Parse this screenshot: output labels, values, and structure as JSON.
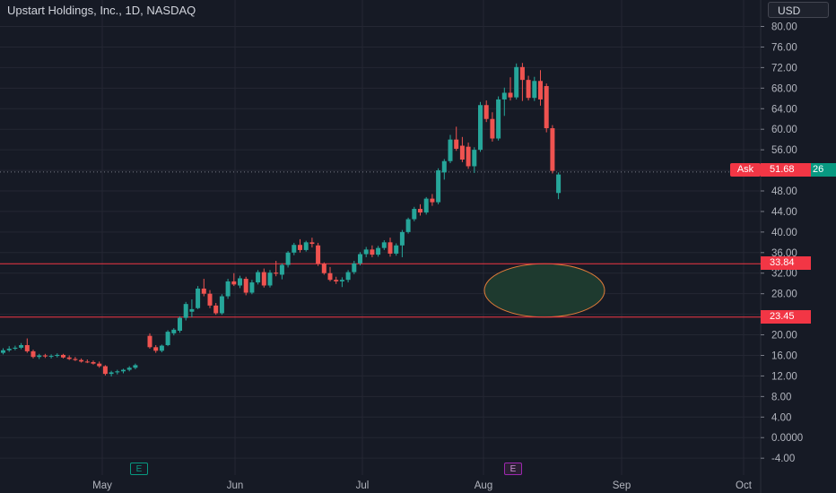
{
  "header": {
    "title": "Upstart Holdings, Inc., 1D, NASDAQ",
    "currency_label": "USD"
  },
  "price_labels": {
    "ask_label": "Ask",
    "ask_price": "51.68",
    "bid_stub": "26",
    "level_upper": "33.84",
    "level_lower": "23.45"
  },
  "earnings_badges": [
    "E",
    "E"
  ],
  "colors": {
    "background": "#161a25",
    "up": "#26a69a",
    "down": "#ef5350",
    "level_line": "#f23645",
    "ellipse_fill": "#1e3a2f",
    "ellipse_stroke": "#e07b39",
    "grid": "#242733",
    "text": "#d1d4dc"
  },
  "chart_data": {
    "type": "candlestick",
    "title": "Upstart Holdings, Inc., 1D, NASDAQ",
    "y_ticks": [
      "80.00",
      "76.00",
      "72.00",
      "68.00",
      "64.00",
      "60.00",
      "56.00",
      "52.00",
      "48.00",
      "44.00",
      "40.00",
      "36.00",
      "32.00",
      "28.00",
      "24.00",
      "20.00",
      "16.00",
      "12.00",
      "8.00",
      "4.00",
      "0.0000",
      "-4.00"
    ],
    "x_ticks": [
      "May",
      "Jun",
      "Jul",
      "Aug",
      "Sep",
      "Oct"
    ],
    "ylim": [
      -5,
      82
    ],
    "horizontal_levels": [
      33.84,
      23.45
    ],
    "current_price": 51.68,
    "highlight_zone": {
      "shape": "ellipse",
      "price_range": [
        23.45,
        33.84
      ]
    },
    "candles": [
      {
        "o": 16.5,
        "h": 17.4,
        "l": 16.2,
        "c": 17.0
      },
      {
        "o": 17.0,
        "h": 17.8,
        "l": 16.7,
        "c": 17.3
      },
      {
        "o": 17.3,
        "h": 17.9,
        "l": 17.0,
        "c": 17.5
      },
      {
        "o": 17.5,
        "h": 18.4,
        "l": 17.2,
        "c": 18.0
      },
      {
        "o": 18.0,
        "h": 19.3,
        "l": 16.5,
        "c": 16.8
      },
      {
        "o": 16.8,
        "h": 17.1,
        "l": 15.4,
        "c": 15.7
      },
      {
        "o": 15.7,
        "h": 16.3,
        "l": 15.3,
        "c": 16.0
      },
      {
        "o": 16.0,
        "h": 16.3,
        "l": 15.5,
        "c": 15.8
      },
      {
        "o": 15.8,
        "h": 16.2,
        "l": 15.4,
        "c": 15.9
      },
      {
        "o": 15.9,
        "h": 16.4,
        "l": 15.6,
        "c": 16.1
      },
      {
        "o": 16.1,
        "h": 16.3,
        "l": 15.4,
        "c": 15.6
      },
      {
        "o": 15.6,
        "h": 16.0,
        "l": 15.1,
        "c": 15.3
      },
      {
        "o": 15.3,
        "h": 15.7,
        "l": 14.9,
        "c": 15.1
      },
      {
        "o": 15.1,
        "h": 15.4,
        "l": 14.6,
        "c": 14.8
      },
      {
        "o": 14.8,
        "h": 15.2,
        "l": 14.5,
        "c": 14.7
      },
      {
        "o": 14.7,
        "h": 15.0,
        "l": 14.2,
        "c": 14.4
      },
      {
        "o": 14.4,
        "h": 14.8,
        "l": 13.6,
        "c": 13.9
      },
      {
        "o": 13.9,
        "h": 14.1,
        "l": 12.1,
        "c": 12.4
      },
      {
        "o": 12.4,
        "h": 13.0,
        "l": 11.9,
        "c": 12.7
      },
      {
        "o": 12.7,
        "h": 13.2,
        "l": 12.3,
        "c": 12.9
      },
      {
        "o": 12.9,
        "h": 13.4,
        "l": 12.5,
        "c": 13.2
      },
      {
        "o": 13.2,
        "h": 13.9,
        "l": 12.9,
        "c": 13.6
      },
      {
        "o": 13.6,
        "h": 14.4,
        "l": 13.3,
        "c": 14.1
      },
      {
        "o": 19.8,
        "h": 20.3,
        "l": 17.3,
        "c": 17.6
      },
      {
        "o": 17.6,
        "h": 18.0,
        "l": 16.5,
        "c": 16.9
      },
      {
        "o": 16.9,
        "h": 18.1,
        "l": 16.6,
        "c": 17.9
      },
      {
        "o": 18.0,
        "h": 20.9,
        "l": 17.8,
        "c": 20.6
      },
      {
        "o": 20.3,
        "h": 21.3,
        "l": 19.9,
        "c": 21.0
      },
      {
        "o": 20.8,
        "h": 23.6,
        "l": 20.4,
        "c": 23.3
      },
      {
        "o": 23.3,
        "h": 26.4,
        "l": 22.8,
        "c": 26.0
      },
      {
        "o": 24.5,
        "h": 26.9,
        "l": 23.4,
        "c": 25.0
      },
      {
        "o": 25.2,
        "h": 29.5,
        "l": 25.0,
        "c": 29.0
      },
      {
        "o": 29.0,
        "h": 30.9,
        "l": 27.5,
        "c": 28.0
      },
      {
        "o": 28.0,
        "h": 28.7,
        "l": 25.2,
        "c": 25.7
      },
      {
        "o": 25.7,
        "h": 26.2,
        "l": 23.9,
        "c": 24.2
      },
      {
        "o": 24.2,
        "h": 27.9,
        "l": 23.9,
        "c": 27.5
      },
      {
        "o": 27.5,
        "h": 30.9,
        "l": 27.0,
        "c": 30.4
      },
      {
        "o": 30.4,
        "h": 32.0,
        "l": 29.5,
        "c": 29.8
      },
      {
        "o": 29.6,
        "h": 31.5,
        "l": 29.1,
        "c": 31.0
      },
      {
        "o": 30.9,
        "h": 31.3,
        "l": 27.7,
        "c": 28.2
      },
      {
        "o": 28.2,
        "h": 30.7,
        "l": 27.9,
        "c": 30.2
      },
      {
        "o": 30.2,
        "h": 32.6,
        "l": 29.8,
        "c": 32.2
      },
      {
        "o": 32.2,
        "h": 32.9,
        "l": 29.2,
        "c": 29.6
      },
      {
        "o": 29.6,
        "h": 32.6,
        "l": 29.2,
        "c": 32.1
      },
      {
        "o": 32.1,
        "h": 34.4,
        "l": 31.4,
        "c": 31.9
      },
      {
        "o": 31.7,
        "h": 33.9,
        "l": 30.8,
        "c": 33.6
      },
      {
        "o": 33.6,
        "h": 36.3,
        "l": 33.1,
        "c": 36.0
      },
      {
        "o": 36.0,
        "h": 37.9,
        "l": 35.5,
        "c": 37.5
      },
      {
        "o": 37.5,
        "h": 38.6,
        "l": 36.0,
        "c": 36.5
      },
      {
        "o": 36.5,
        "h": 38.3,
        "l": 36.2,
        "c": 38.0
      },
      {
        "o": 38.0,
        "h": 38.9,
        "l": 37.0,
        "c": 37.7
      },
      {
        "o": 37.4,
        "h": 37.9,
        "l": 33.4,
        "c": 33.8
      },
      {
        "o": 33.8,
        "h": 34.1,
        "l": 31.7,
        "c": 32.0
      },
      {
        "o": 32.0,
        "h": 33.2,
        "l": 30.4,
        "c": 30.7
      },
      {
        "o": 30.7,
        "h": 31.3,
        "l": 29.9,
        "c": 30.4
      },
      {
        "o": 30.4,
        "h": 31.2,
        "l": 29.3,
        "c": 30.7
      },
      {
        "o": 30.7,
        "h": 32.6,
        "l": 30.2,
        "c": 32.2
      },
      {
        "o": 32.2,
        "h": 34.4,
        "l": 31.8,
        "c": 33.9
      },
      {
        "o": 33.9,
        "h": 36.1,
        "l": 33.5,
        "c": 35.7
      },
      {
        "o": 35.7,
        "h": 37.1,
        "l": 35.1,
        "c": 36.6
      },
      {
        "o": 36.6,
        "h": 37.4,
        "l": 35.1,
        "c": 35.6
      },
      {
        "o": 35.6,
        "h": 37.3,
        "l": 35.2,
        "c": 36.9
      },
      {
        "o": 36.9,
        "h": 38.4,
        "l": 36.5,
        "c": 38.0
      },
      {
        "o": 38.0,
        "h": 38.9,
        "l": 35.2,
        "c": 35.8
      },
      {
        "o": 35.8,
        "h": 37.8,
        "l": 35.4,
        "c": 37.4
      },
      {
        "o": 37.4,
        "h": 40.4,
        "l": 35.1,
        "c": 40.0
      },
      {
        "o": 40.0,
        "h": 42.8,
        "l": 39.7,
        "c": 42.5
      },
      {
        "o": 42.5,
        "h": 44.9,
        "l": 42.1,
        "c": 44.5
      },
      {
        "o": 44.5,
        "h": 45.4,
        "l": 43.2,
        "c": 43.8
      },
      {
        "o": 43.8,
        "h": 46.8,
        "l": 43.4,
        "c": 46.5
      },
      {
        "o": 46.5,
        "h": 47.4,
        "l": 45.1,
        "c": 45.8
      },
      {
        "o": 45.8,
        "h": 52.4,
        "l": 45.4,
        "c": 52.0
      },
      {
        "o": 51.6,
        "h": 54.2,
        "l": 50.2,
        "c": 53.8
      },
      {
        "o": 53.8,
        "h": 58.9,
        "l": 53.4,
        "c": 58.0
      },
      {
        "o": 58.0,
        "h": 60.5,
        "l": 55.8,
        "c": 56.2
      },
      {
        "o": 56.8,
        "h": 58.5,
        "l": 53.6,
        "c": 54.1
      },
      {
        "o": 56.6,
        "h": 57.4,
        "l": 52.3,
        "c": 52.8
      },
      {
        "o": 52.8,
        "h": 56.5,
        "l": 51.5,
        "c": 56.0
      },
      {
        "o": 56.0,
        "h": 65.3,
        "l": 55.6,
        "c": 64.7
      },
      {
        "o": 64.7,
        "h": 65.6,
        "l": 61.4,
        "c": 62.0
      },
      {
        "o": 62.0,
        "h": 63.3,
        "l": 57.6,
        "c": 58.2
      },
      {
        "o": 58.2,
        "h": 66.4,
        "l": 57.8,
        "c": 65.8
      },
      {
        "o": 65.8,
        "h": 68.1,
        "l": 62.6,
        "c": 67.1
      },
      {
        "o": 67.1,
        "h": 70.1,
        "l": 65.6,
        "c": 66.2
      },
      {
        "o": 66.2,
        "h": 72.8,
        "l": 65.8,
        "c": 72.1
      },
      {
        "o": 72.1,
        "h": 72.9,
        "l": 65.5,
        "c": 69.6
      },
      {
        "o": 69.6,
        "h": 70.4,
        "l": 65.6,
        "c": 66.1
      },
      {
        "o": 66.1,
        "h": 70.2,
        "l": 65.5,
        "c": 69.4
      },
      {
        "o": 69.4,
        "h": 71.5,
        "l": 64.6,
        "c": 65.8
      },
      {
        "o": 68.4,
        "h": 68.9,
        "l": 59.4,
        "c": 60.2
      },
      {
        "o": 60.2,
        "h": 60.8,
        "l": 51.4,
        "c": 51.9
      },
      {
        "o": 47.6,
        "h": 51.6,
        "l": 46.4,
        "c": 51.2
      }
    ]
  }
}
